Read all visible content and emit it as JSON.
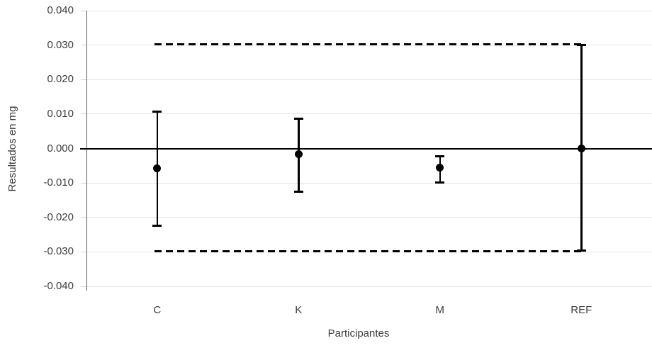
{
  "chart_data": {
    "type": "scatter",
    "subtype": "points-with-error-bars",
    "xlabel": "Participantes",
    "ylabel": "Resultados en mg",
    "categories": [
      "C",
      "K",
      "M",
      "REF"
    ],
    "series": [
      {
        "marker": "circle",
        "color": "#000000",
        "means": [
          -0.0057,
          -0.0016,
          -0.0055,
          0.0
        ],
        "error_upper": [
          0.0107,
          0.0086,
          -0.0023,
          0.03
        ],
        "error_lower": [
          -0.0225,
          -0.0126,
          -0.0098,
          -0.0297
        ]
      }
    ],
    "reference_lines": [
      {
        "value": 0.0302,
        "style": "dashed",
        "color": "#000000"
      },
      {
        "value": -0.0298,
        "style": "dashed",
        "color": "#000000"
      },
      {
        "value": 0.0,
        "style": "solid",
        "color": "#000000"
      }
    ],
    "ylim": [
      -0.04,
      0.04
    ],
    "y_tick_labels": [
      "0.040",
      "0.030",
      "0.020",
      "0.010",
      "0.000",
      "-0.010",
      "-0.020",
      "-0.030",
      "-0.040"
    ],
    "grid": true,
    "legend": false,
    "colors": {
      "data": "#000000",
      "gridline": "#e4e4e4",
      "axis_line": "#5a5a5a",
      "text": "#3d3d3d",
      "background": "#ffffff"
    }
  }
}
